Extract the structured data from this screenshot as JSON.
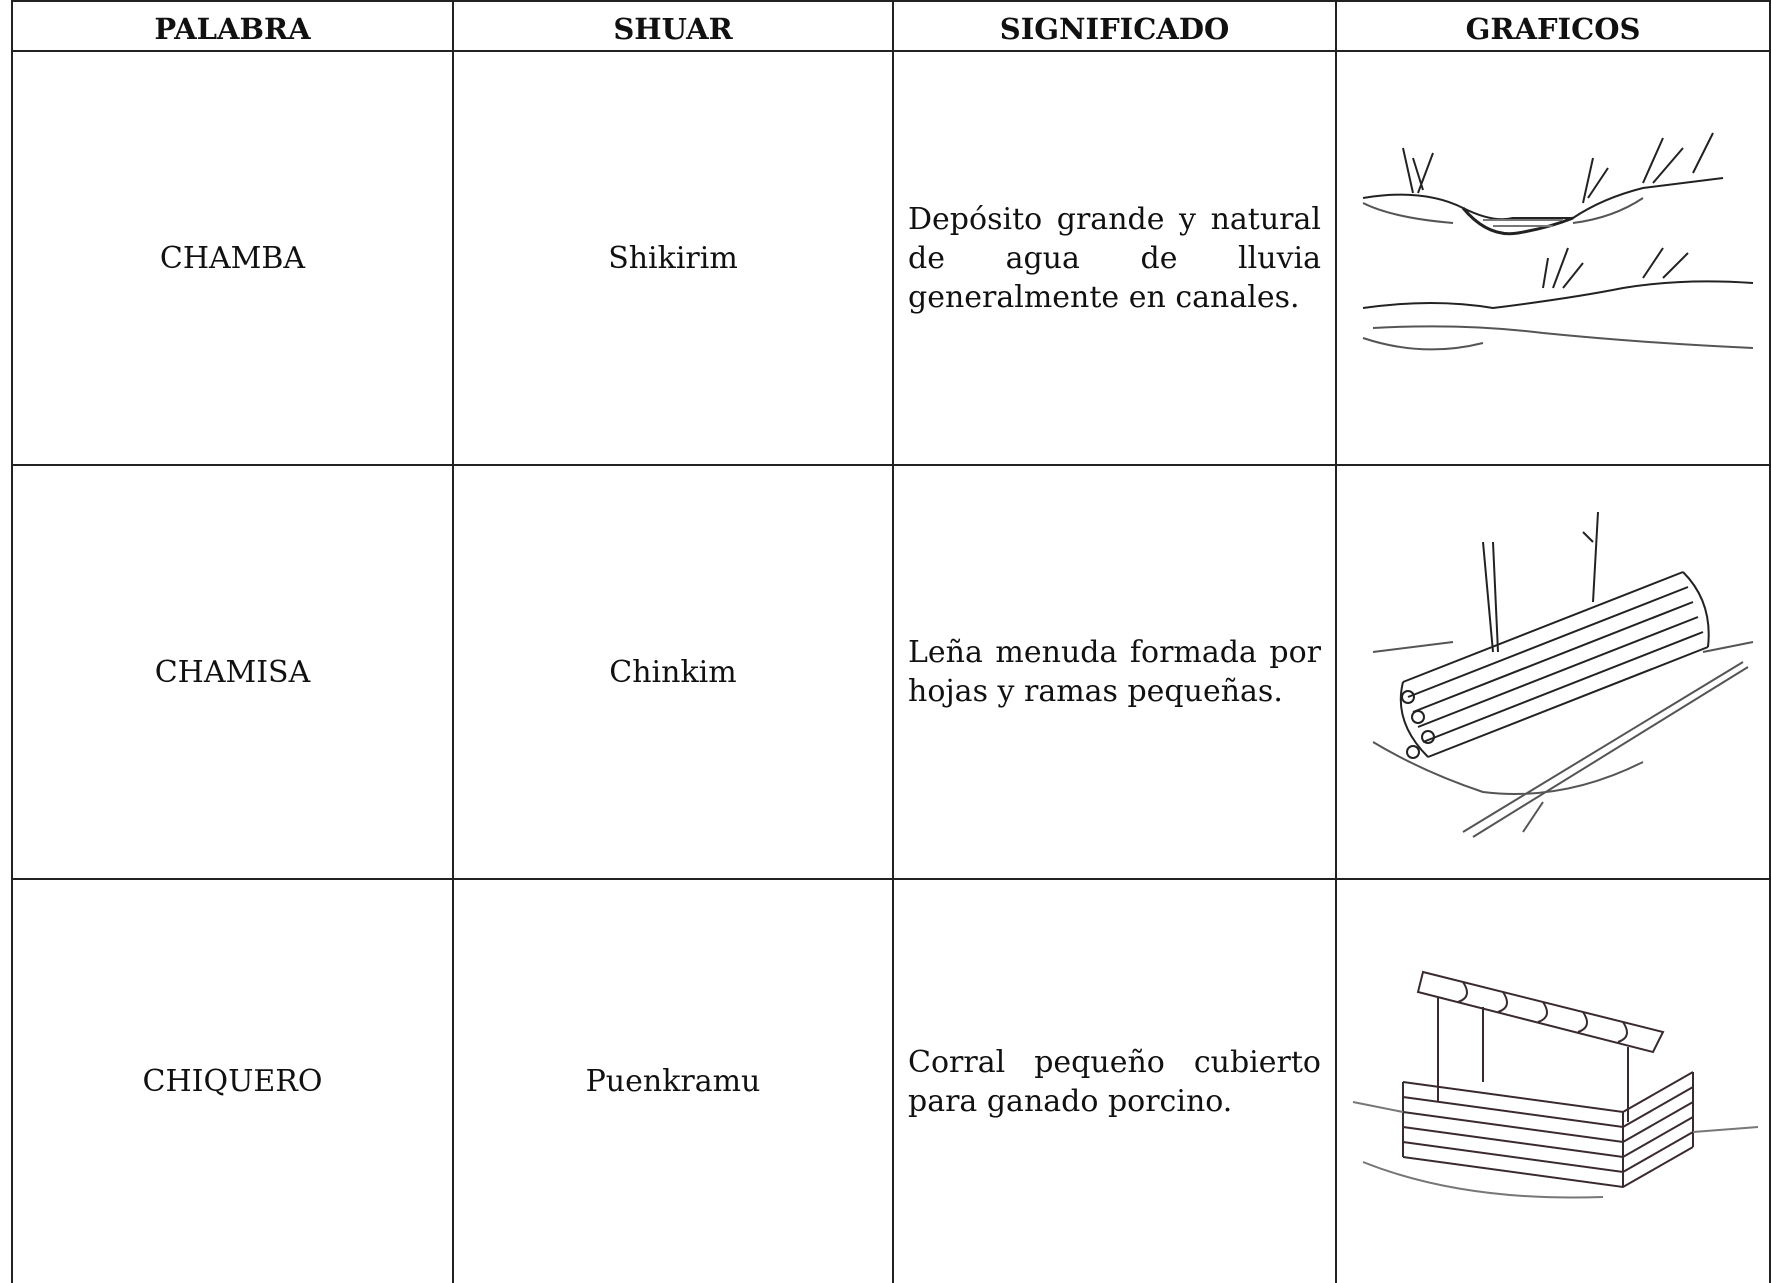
{
  "table": {
    "header": [
      "PALABRA",
      "SHUAR",
      "SIGNIFICADO",
      "GRAFICOS"
    ],
    "rows": [
      [
        "CHAMBA",
        "Shikirim",
        "Depósito grande y natural de agua de lluvia generalmente en canales."
      ],
      [
        "CHAMISA",
        "Chinkim",
        "Leña menuda formada por hojas y ramas pequeñas."
      ],
      [
        "CHIQUERO",
        "Puenkramu",
        "Corral pequeño cubierto para ganado porcino."
      ]
    ]
  }
}
